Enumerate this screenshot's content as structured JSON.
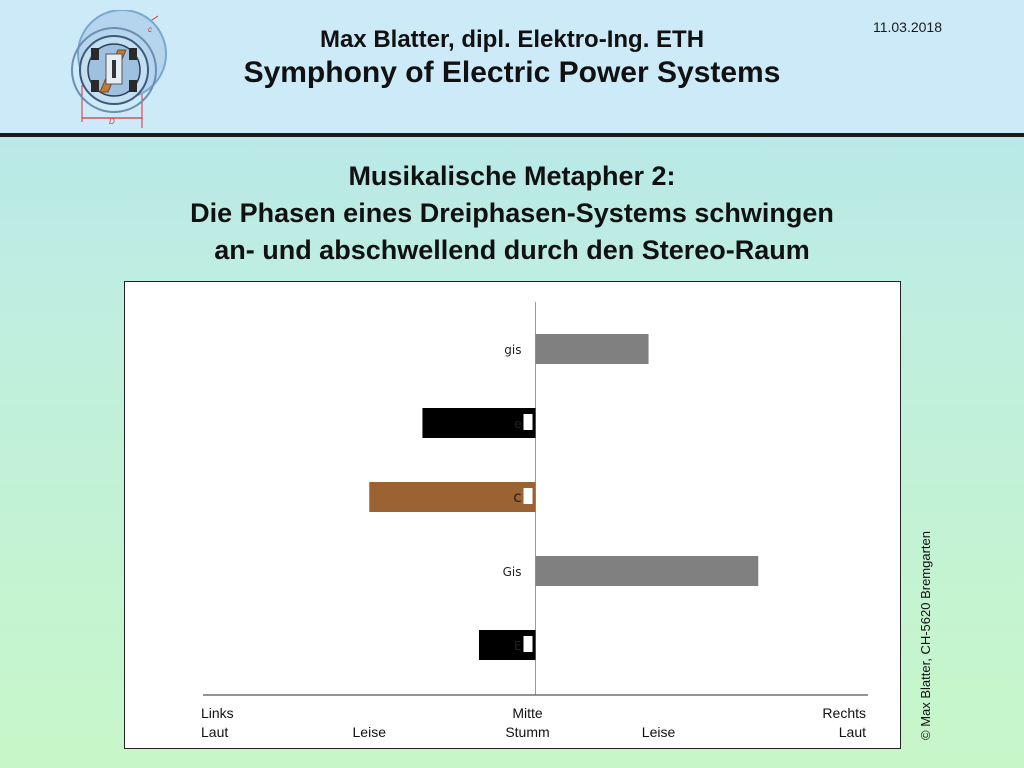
{
  "header": {
    "date": "11.03.2018",
    "author": "Max Blatter, dipl. Elektro-Ing. ETH",
    "title": "Symphony of Electric Power Systems"
  },
  "slide": {
    "heading_lines": [
      "Musikalische Metapher 2:",
      "Die Phasen eines Dreiphasen-Systems schwingen",
      "an- und abschwellend durch den Stereo-Raum"
    ]
  },
  "logo": {
    "label_c": "c",
    "label_d": "D"
  },
  "copyright": "© Max Blatter, CH-5620 Bremgarten",
  "chart_data": {
    "type": "bar",
    "orientation": "horizontal",
    "xlim": [
      -1,
      1
    ],
    "axis_labels_row1": [
      "Links",
      "Mitte",
      "Rechts"
    ],
    "axis_labels_row2": [
      "Laut",
      "Leise",
      "Stumm",
      "Leise",
      "Laut"
    ],
    "bars": [
      {
        "label": "gis",
        "value": 0.34,
        "color": "#808080",
        "label_box": false
      },
      {
        "label": "e",
        "value": -0.34,
        "color": "#000000",
        "label_box": true
      },
      {
        "label": "c",
        "value": -0.5,
        "color": "#9b6331",
        "label_box": true
      },
      {
        "label": "Gis",
        "value": 0.67,
        "color": "#808080",
        "label_box": false
      },
      {
        "label": "E",
        "value": -0.17,
        "color": "#000000",
        "label_box": true
      }
    ]
  }
}
